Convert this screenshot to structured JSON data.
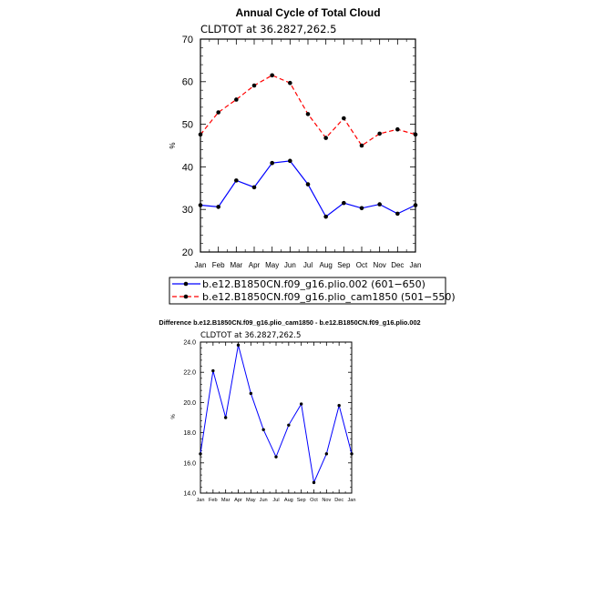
{
  "chart_data": [
    {
      "type": "line",
      "title": "Annual Cycle of Total Cloud",
      "subtitle": "CLDTOT at 36.2827,262.5",
      "ylabel": "%",
      "ylim": [
        20,
        70
      ],
      "yticks": [
        "20",
        "30",
        "40",
        "50",
        "60",
        "70"
      ],
      "categories": [
        "Jan",
        "Feb",
        "Mar",
        "Apr",
        "May",
        "Jun",
        "Jul",
        "Aug",
        "Sep",
        "Oct",
        "Nov",
        "Dec",
        "Jan"
      ],
      "legend_position": "bottom",
      "series": [
        {
          "name": "b.e12.B1850CN.f09_g16.plio.002 (601−650)",
          "color": "#0000ff",
          "dash": "solid",
          "values": [
            31.0,
            30.6,
            36.8,
            35.2,
            40.9,
            41.4,
            35.9,
            28.3,
            31.5,
            30.3,
            31.2,
            29.0,
            31.0
          ]
        },
        {
          "name": "b.e12.B1850CN.f09_g16.plio_cam1850 (501−550)",
          "color": "#ff0000",
          "dash": "dashed",
          "values": [
            47.6,
            52.8,
            55.8,
            59.1,
            61.5,
            59.7,
            52.4,
            46.8,
            51.4,
            45.0,
            47.8,
            48.8,
            47.6
          ]
        }
      ]
    },
    {
      "type": "line",
      "title": "Difference b.e12.B1850CN.f09_g16.plio_cam1850 - b.e12.B1850CN.f09_g16.plio.002",
      "subtitle": "CLDTOT at 36.2827,262.5",
      "ylabel": "%",
      "ylim": [
        14,
        24
      ],
      "yticks": [
        "14.0",
        "16.0",
        "18.0",
        "20.0",
        "22.0",
        "24.0"
      ],
      "categories": [
        "Jan",
        "Feb",
        "Mar",
        "Apr",
        "May",
        "Jun",
        "Jul",
        "Aug",
        "Sep",
        "Oct",
        "Nov",
        "Dec",
        "Jan"
      ],
      "series": [
        {
          "color": "#0000ff",
          "dash": "solid",
          "values": [
            16.6,
            22.1,
            19.0,
            23.8,
            20.6,
            18.2,
            16.4,
            18.5,
            19.9,
            14.7,
            16.6,
            19.8,
            16.6
          ]
        }
      ]
    }
  ]
}
